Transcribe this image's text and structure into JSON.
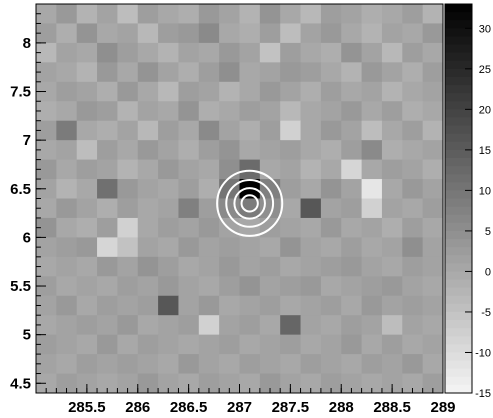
{
  "chart_data": {
    "type": "heatmap",
    "title": "",
    "xlabel": "",
    "ylabel": "",
    "xlim": [
      285.0,
      289.0
    ],
    "ylim": [
      4.4,
      8.4
    ],
    "zlim": [
      -15,
      33
    ],
    "colormap": "grayscale, higher values darker",
    "x_ticks": [
      "285.5",
      "286",
      "286.5",
      "287",
      "287.5",
      "288",
      "288.5",
      "289"
    ],
    "y_ticks": [
      "4.5",
      "5",
      "5.5",
      "6",
      "6.5",
      "7",
      "7.5",
      "8"
    ],
    "colorbar_ticks": [
      "-15",
      "-10",
      "-5",
      "0",
      "5",
      "10",
      "15",
      "20",
      "25",
      "30"
    ],
    "grid": false,
    "n_cols": 20,
    "n_rows": 20,
    "x_bin_width": 0.2,
    "y_bin_width": 0.2,
    "values": [
      [
        0,
        3,
        -2,
        1,
        -4,
        2,
        0,
        -1,
        3,
        1,
        -2,
        4,
        0,
        -3,
        2,
        1,
        -1,
        0,
        2,
        -2
      ],
      [
        2,
        -1,
        4,
        0,
        1,
        -3,
        2,
        3,
        6,
        0,
        -1,
        2,
        -4,
        1,
        3,
        0,
        -2,
        1,
        0,
        3
      ],
      [
        -3,
        1,
        0,
        5,
        2,
        0,
        -2,
        1,
        0,
        3,
        1,
        -5,
        2,
        0,
        -1,
        4,
        1,
        -3,
        2,
        0
      ],
      [
        1,
        0,
        -2,
        3,
        0,
        4,
        1,
        -1,
        2,
        5,
        0,
        1,
        3,
        2,
        0,
        -2,
        3,
        1,
        -1,
        2
      ],
      [
        0,
        2,
        1,
        -1,
        3,
        0,
        -3,
        2,
        1,
        -2,
        0,
        3,
        1,
        -1,
        2,
        0,
        1,
        -2,
        0,
        1
      ],
      [
        -1,
        0,
        3,
        2,
        -2,
        1,
        0,
        4,
        -1,
        0,
        2,
        1,
        -3,
        0,
        1,
        3,
        0,
        2,
        -1,
        0
      ],
      [
        2,
        9,
        0,
        -1,
        1,
        -3,
        2,
        0,
        6,
        1,
        -1,
        2,
        -8,
        0,
        3,
        1,
        -4,
        0,
        2,
        -2
      ],
      [
        0,
        1,
        -4,
        2,
        0,
        3,
        1,
        -1,
        2,
        4,
        0,
        1,
        2,
        0,
        -1,
        2,
        6,
        -1,
        0,
        1
      ],
      [
        3,
        0,
        2,
        1,
        -2,
        0,
        3,
        1,
        0,
        5,
        12,
        0,
        1,
        -2,
        0,
        -9,
        0,
        2,
        1,
        -1
      ],
      [
        1,
        -2,
        0,
        11,
        3,
        1,
        0,
        2,
        -1,
        10,
        33,
        8,
        2,
        0,
        4,
        1,
        -12,
        0,
        3,
        1
      ],
      [
        0,
        3,
        1,
        -1,
        2,
        0,
        1,
        8,
        2,
        6,
        9,
        5,
        0,
        16,
        1,
        2,
        -8,
        1,
        0,
        2
      ],
      [
        4,
        0,
        -1,
        2,
        -8,
        0,
        2,
        1,
        3,
        1,
        0,
        2,
        1,
        0,
        3,
        0,
        1,
        -1,
        2,
        0
      ],
      [
        1,
        2,
        3,
        -9,
        -5,
        1,
        0,
        3,
        1,
        2,
        1,
        0,
        4,
        1,
        0,
        2,
        0,
        1,
        5,
        1
      ],
      [
        0,
        1,
        0,
        3,
        1,
        4,
        2,
        0,
        1,
        3,
        1,
        2,
        0,
        1,
        2,
        3,
        1,
        0,
        2,
        1
      ],
      [
        2,
        0,
        1,
        0,
        2,
        1,
        3,
        1,
        0,
        2,
        4,
        1,
        2,
        3,
        0,
        1,
        2,
        3,
        1,
        0
      ],
      [
        1,
        3,
        0,
        2,
        1,
        2,
        16,
        1,
        3,
        0,
        1,
        2,
        0,
        1,
        2,
        0,
        3,
        1,
        2,
        1
      ],
      [
        0,
        1,
        2,
        1,
        3,
        0,
        1,
        2,
        -8,
        1,
        2,
        0,
        13,
        1,
        0,
        2,
        1,
        -4,
        1,
        0
      ],
      [
        2,
        1,
        0,
        3,
        0,
        2,
        1,
        0,
        1,
        2,
        0,
        1,
        2,
        0,
        1,
        3,
        0,
        2,
        0,
        1
      ],
      [
        1,
        0,
        2,
        1,
        2,
        1,
        0,
        3,
        1,
        0,
        2,
        1,
        0,
        2,
        1,
        0,
        2,
        1,
        3,
        0
      ],
      [
        0,
        2,
        1,
        0,
        1,
        3,
        1,
        0,
        2,
        1,
        0,
        3,
        1,
        0,
        2,
        1,
        0,
        1,
        0,
        2
      ]
    ],
    "contours": {
      "center": [
        287.1,
        6.35
      ],
      "radii": [
        0.08,
        0.15,
        0.23,
        0.32
      ],
      "color": "#ffffff"
    }
  }
}
